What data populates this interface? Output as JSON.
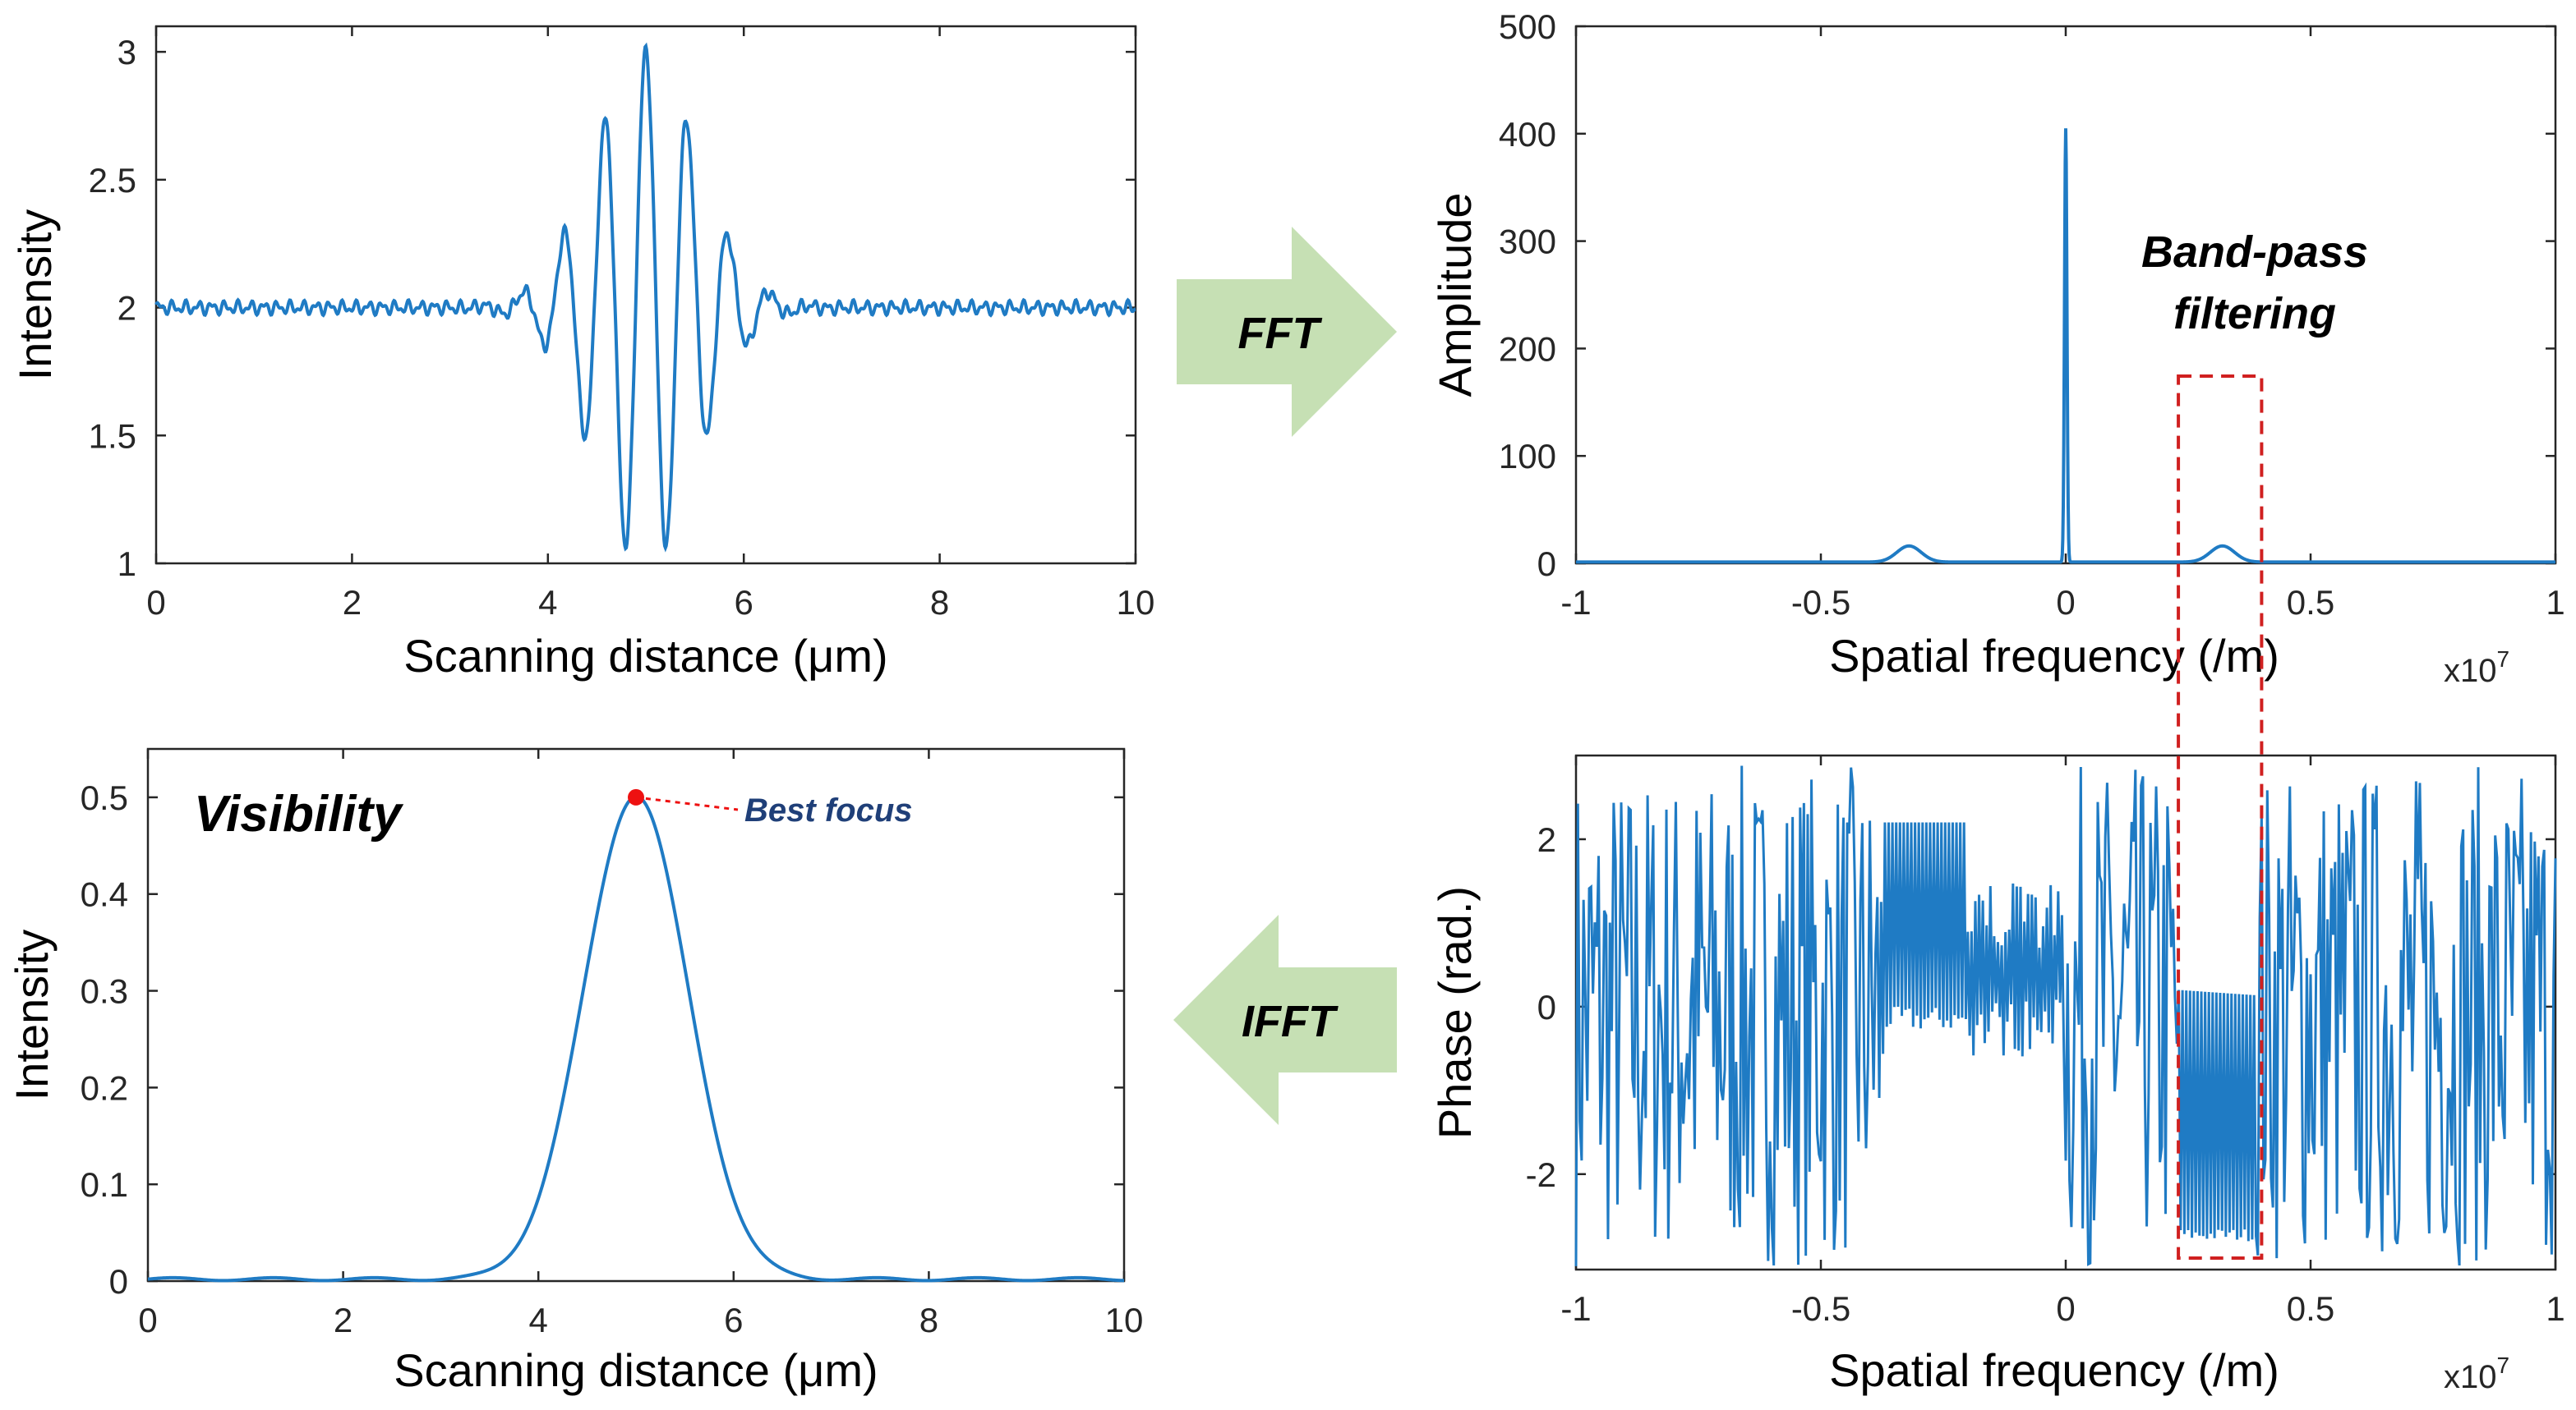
{
  "colors": {
    "line": "#1f7bc4",
    "arrow": "#c6e0b4",
    "filter_box": "#d02020",
    "peak_marker": "#ee1111"
  },
  "arrows": {
    "fft": "FFT",
    "ifft": "IFFT"
  },
  "chart_data": [
    {
      "id": "interferogram",
      "type": "line",
      "title": "",
      "xlabel": "Scanning distance (μm)",
      "ylabel": "Intensity",
      "xlim": [
        0,
        10
      ],
      "ylim": [
        1,
        3.1
      ],
      "xticks": [
        "0",
        "2",
        "4",
        "6",
        "8",
        "10"
      ],
      "yticks": [
        "1",
        "1.5",
        "2",
        "2.5",
        "3"
      ],
      "series": [
        {
          "name": "Intensity",
          "model": "2 + exp(-((x-5)/0.75)^2)*cos(2π·(x-5)/0.42), small noise ±0.02",
          "center_um": 5.0,
          "peak": 3.0,
          "min": 1.07,
          "baseline": 2.0
        }
      ]
    },
    {
      "id": "amplitude_spectrum",
      "type": "line",
      "xlabel": "Spatial frequency (/m)",
      "ylabel": "Amplitude",
      "xlim": [
        -1,
        1
      ],
      "x_multiplier": "x10",
      "x_multiplier_exp": "7",
      "ylim": [
        0,
        500
      ],
      "xticks": [
        "-1",
        "-0.5",
        "0",
        "0.5",
        "1"
      ],
      "yticks": [
        "0",
        "100",
        "200",
        "300",
        "400",
        "500"
      ],
      "peaks": [
        {
          "x": 0.0,
          "amplitude": 405
        },
        {
          "x": -0.32,
          "amplitude": 15
        },
        {
          "x": 0.32,
          "amplitude": 15
        }
      ],
      "annotation": {
        "line1": "Band-pass",
        "line2": "filtering"
      },
      "filter_band": [
        0.23,
        0.4
      ]
    },
    {
      "id": "phase_spectrum",
      "type": "line",
      "xlabel": "Spatial frequency (/m)",
      "ylabel": "Phase (rad.)",
      "xlim": [
        -1,
        1
      ],
      "x_multiplier": "x10",
      "x_multiplier_exp": "7",
      "ylim": [
        -3.14,
        3.0
      ],
      "xticks": [
        "-1",
        "-0.5",
        "0",
        "0.5",
        "1"
      ],
      "yticks": [
        "-2",
        "0",
        "2"
      ],
      "series": [
        {
          "name": "Phase",
          "description": "random-like phase in [-π, π] with regular sawtooth segments near -0.35, 0.4 and 0.23–0.38 (x10^7)"
        }
      ]
    },
    {
      "id": "visibility",
      "type": "line",
      "xlabel": "Scanning distance (μm)",
      "ylabel": "Intensity",
      "xlim": [
        0,
        10
      ],
      "ylim": [
        0,
        0.55
      ],
      "xticks": [
        "0",
        "2",
        "4",
        "6",
        "8",
        "10"
      ],
      "yticks": [
        "0",
        "0.1",
        "0.2",
        "0.3",
        "0.4",
        "0.5"
      ],
      "series": [
        {
          "name": "Visibility",
          "model": "0.5*exp(-((x-5)/0.75)^2)",
          "peak": {
            "x": 5.0,
            "y": 0.5
          }
        }
      ],
      "annotation": "Visibility",
      "peak_label": "Best focus"
    }
  ]
}
